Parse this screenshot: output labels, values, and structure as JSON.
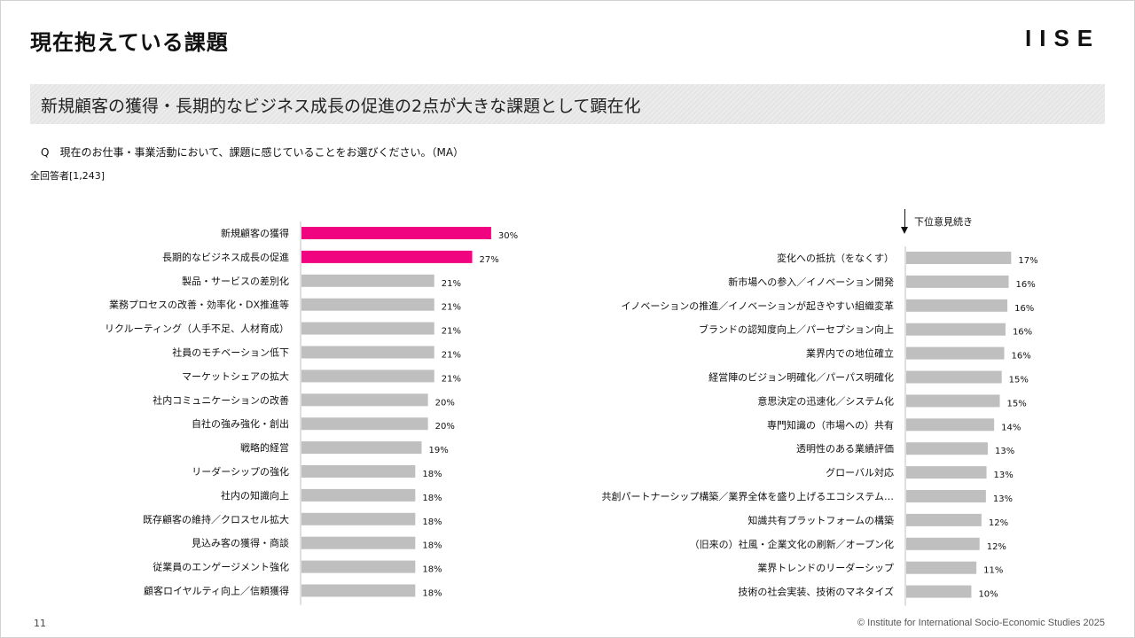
{
  "page": {
    "title": "現在抱えている課題",
    "logo": "IISE",
    "headline": "新規顧客の獲得・長期的なビジネス成長の促進の2点が大きな課題として顕在化",
    "question": "Q　現在のお仕事・事業活動において、課題に感じていることをお選びください。（MA）",
    "sample": "全回答者[1,243]",
    "lower_note": "下位意見続き",
    "page_number": "11",
    "copyright": "© Institute for International Socio-Economic Studies 2025"
  },
  "colors": {
    "highlight": "#F0047F",
    "bar": "#BFBFBF",
    "axis": "#BFBFBF"
  },
  "chart_data": [
    {
      "type": "bar",
      "orientation": "horizontal",
      "unit": "%",
      "xlim": [
        0,
        100
      ],
      "categories": [
        "新規顧客の獲得",
        "長期的なビジネス成長の促進",
        "製品・サービスの差別化",
        "業務プロセスの改善・効率化・DX推進等",
        "リクルーティング（人手不足、人材育成）",
        "社員のモチベーション低下",
        "マーケットシェアの拡大",
        "社内コミュニケーションの改善",
        "自社の強み強化・創出",
        "戦略的経営",
        "リーダーシップの強化",
        "社内の知識向上",
        "既存顧客の維持／クロスセル拡大",
        "見込み客の獲得・商談",
        "従業員のエンゲージメント強化",
        "顧客ロイヤルティ向上／信頼獲得"
      ],
      "values": [
        30,
        27,
        21,
        21,
        21,
        21,
        21,
        20,
        20,
        19,
        18,
        18,
        18,
        18,
        18,
        18
      ],
      "labels": [
        "30%",
        "27%",
        "21%",
        "21%",
        "21%",
        "21%",
        "21%",
        "20%",
        "20%",
        "19%",
        "18%",
        "18%",
        "18%",
        "18%",
        "18%",
        "18%"
      ],
      "highlighted": [
        0,
        1
      ]
    },
    {
      "type": "bar",
      "orientation": "horizontal",
      "unit": "%",
      "xlim": [
        0,
        100
      ],
      "categories": [
        "変化への抵抗（をなくす）",
        "新市場への参入／イノベーション開発",
        "イノベーションの推進／イノベーションが起きやすい組織変革",
        "ブランドの認知度向上／パーセプション向上",
        "業界内での地位確立",
        "経営陣のビジョン明確化／パーパス明確化",
        "意思決定の迅速化／システム化",
        "専門知識の（市場への）共有",
        "透明性のある業績評価",
        "グローバル対応",
        "共創パートナーシップ構築／業界全体を盛り上げるエコシステム…",
        "知識共有プラットフォームの構築",
        "（旧来の）社風・企業文化の刷新／オープン化",
        "業界トレンドのリーダーシップ",
        "技術の社会実装、技術のマネタイズ"
      ],
      "values": [
        16.6,
        16.2,
        16.0,
        15.7,
        15.5,
        15.1,
        14.8,
        13.9,
        12.9,
        12.7,
        12.6,
        11.9,
        11.6,
        11.1,
        10.3
      ],
      "labels": [
        "17%",
        "16%",
        "16%",
        "16%",
        "16%",
        "15%",
        "15%",
        "14%",
        "13%",
        "13%",
        "13%",
        "12%",
        "12%",
        "11%",
        "10%"
      ],
      "highlighted": []
    }
  ]
}
